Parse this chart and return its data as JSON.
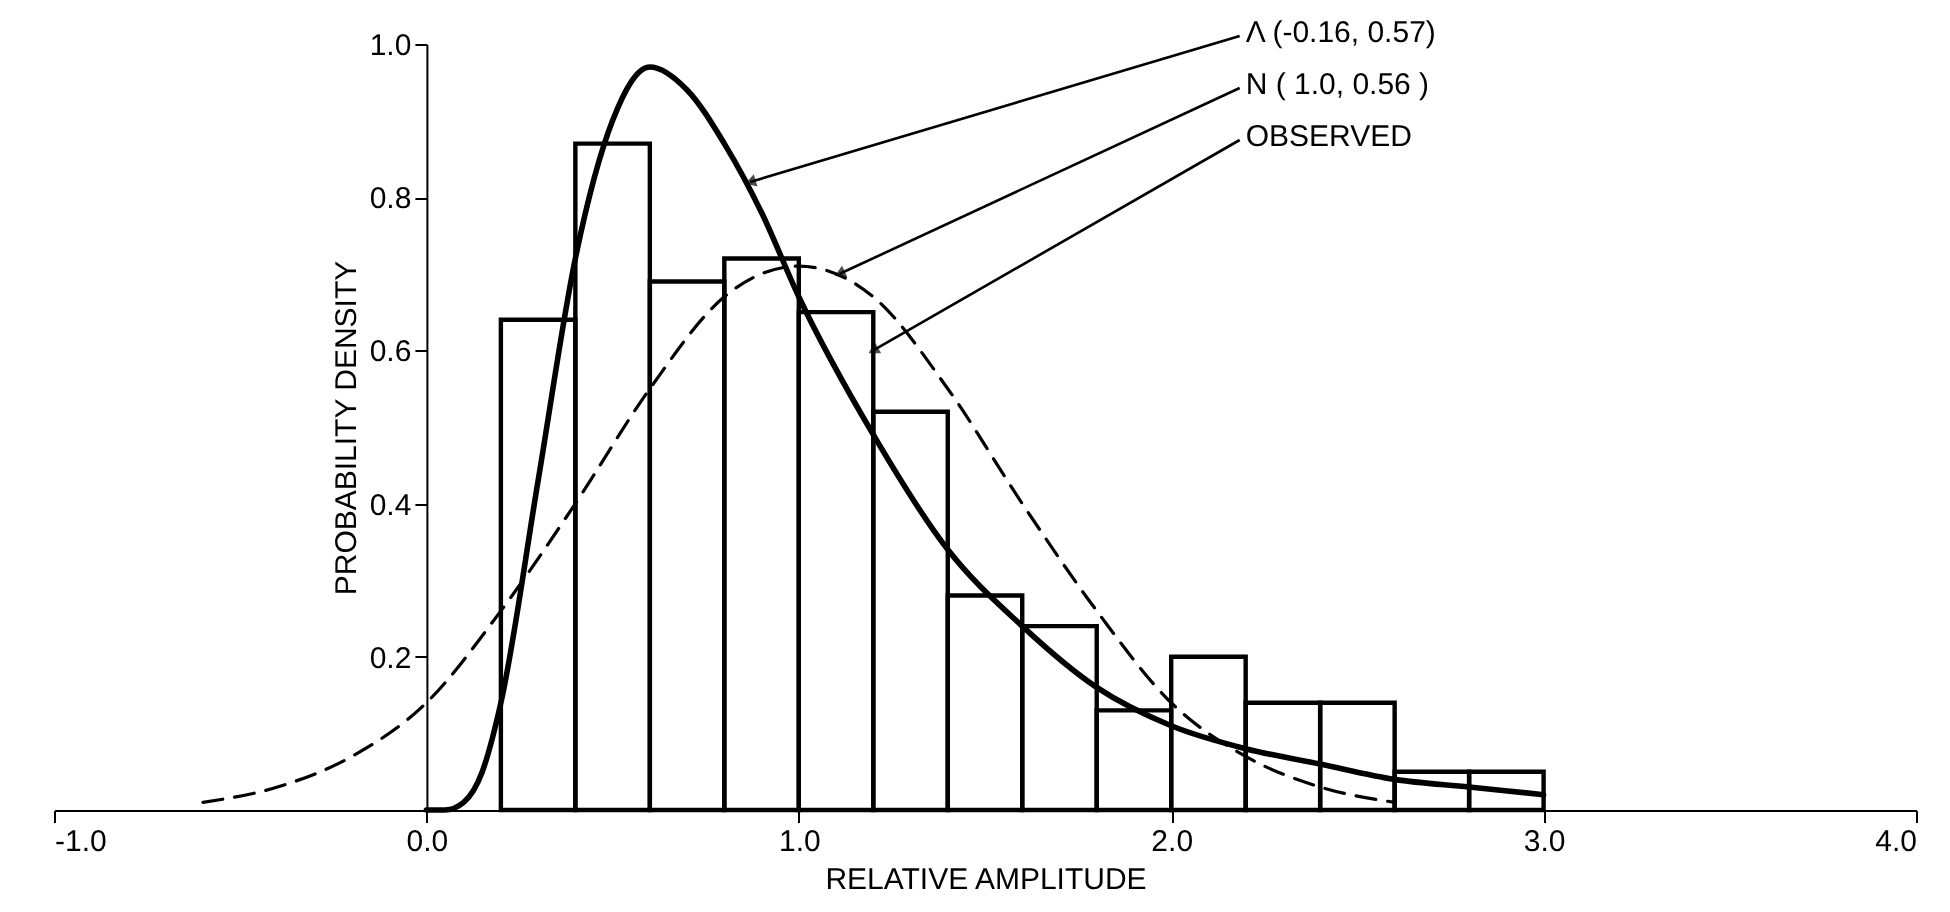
{
  "chart_data": {
    "type": "histogram",
    "xlabel": "RELATIVE AMPLITUDE",
    "ylabel": "PROBABILITY DENSITY",
    "xlim": [
      -1,
      4
    ],
    "xticks": [
      {
        "value": -1,
        "label": "-1.0"
      },
      {
        "value": 0,
        "label": "0.0"
      },
      {
        "value": 1,
        "label": "1.0"
      },
      {
        "value": 2,
        "label": "2.0"
      },
      {
        "value": 3,
        "label": "3.0"
      },
      {
        "value": 4,
        "label": "4.0"
      }
    ],
    "ylim": [
      0,
      1
    ],
    "yticks": [
      0.2,
      0.4,
      0.6,
      0.8,
      {
        "value": 1,
        "label": "1.0"
      }
    ],
    "grid": false,
    "series": [
      {
        "color": "#000000",
        "bins": [
          0.2,
          0.4,
          0.6,
          0.8,
          1.0,
          1.2,
          1.4,
          1.6,
          1.8,
          2.0,
          2.2,
          2.4,
          2.6,
          2.8,
          3.0
        ],
        "values": [
          0.64,
          0.87,
          0.69,
          0.72,
          0.65,
          0.52,
          0.28,
          0.24,
          0.13,
          0.2,
          0.14,
          0.14,
          0.05,
          0.05
        ]
      },
      {
        "type": "line",
        "color": "#000000",
        "line_style": "solid",
        "x": [
          0,
          0.05,
          0.1,
          0.15,
          0.2,
          0.3,
          0.4,
          0.5,
          0.6,
          0.7,
          0.8,
          0.9,
          1.0,
          1.2,
          1.4,
          1.6,
          1.8,
          2.0,
          2.2,
          2.4,
          2.6,
          2.8,
          3.0
        ],
        "values": [
          0,
          0.0,
          0.01,
          0.05,
          0.14,
          0.43,
          0.72,
          0.9,
          0.97,
          0.94,
          0.87,
          0.78,
          0.67,
          0.49,
          0.34,
          0.24,
          0.16,
          0.11,
          0.08,
          0.06,
          0.04,
          0.03,
          0.02
        ]
      },
      {
        "type": "line",
        "color": "#000000",
        "line_style": "dashed",
        "x": [
          -0.6,
          -0.4,
          -0.2,
          0,
          0.2,
          0.4,
          0.6,
          0.8,
          1.0,
          1.2,
          1.4,
          1.6,
          1.8,
          2.0,
          2.2,
          2.4,
          2.6
        ],
        "values": [
          0.01,
          0.03,
          0.07,
          0.14,
          0.26,
          0.4,
          0.55,
          0.67,
          0.71,
          0.67,
          0.55,
          0.4,
          0.26,
          0.14,
          0.07,
          0.03,
          0.01
        ]
      }
    ],
    "annotations": [
      {
        "text": "Λ (-0.16, 0.57)",
        "x": 0.87,
        "y": 0.82
      },
      {
        "text": "N ( 1.0, 0.56 )",
        "x": 1.11,
        "y": 0.7
      },
      {
        "text": "OBSERVED",
        "x": 1.2,
        "y": 0.6
      }
    ]
  }
}
